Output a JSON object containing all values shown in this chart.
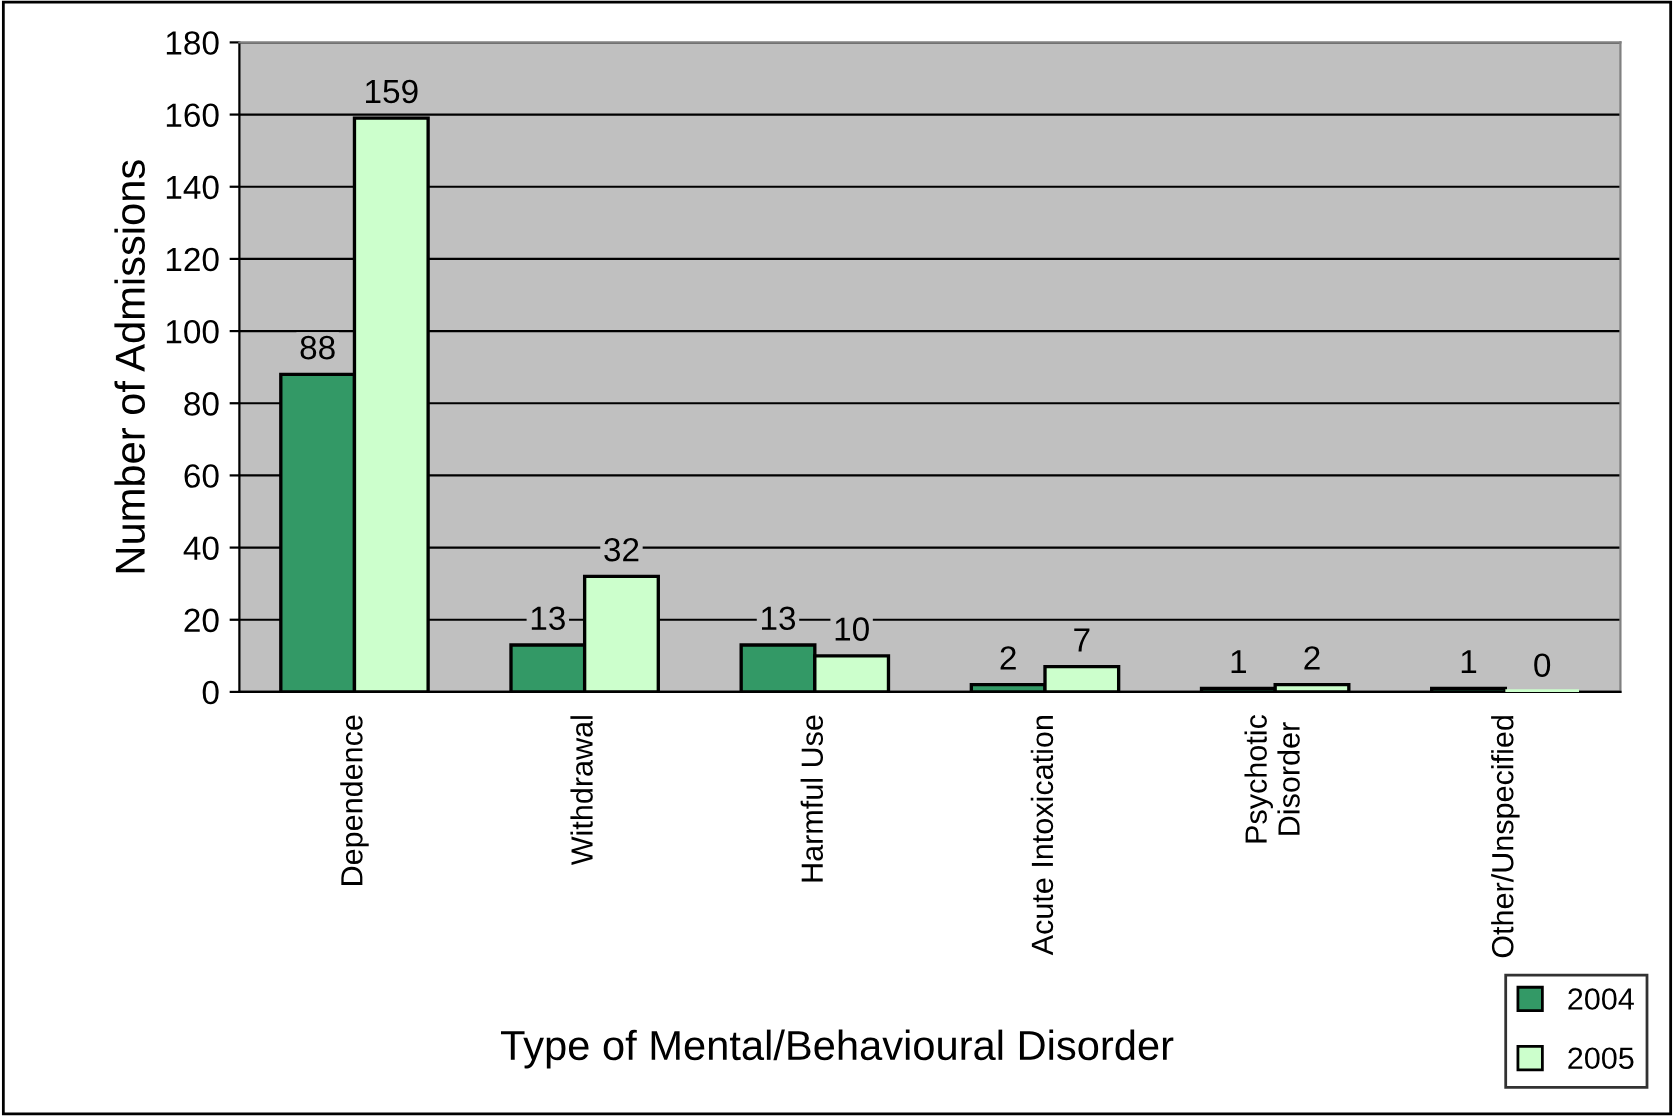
{
  "chart_data": {
    "type": "bar",
    "xlabel": "Type of Mental/Behavioural Disorder",
    "ylabel": "Number of Admissions",
    "categories": [
      "Dependence",
      "Withdrawal",
      "Harmful Use",
      "Acute Intoxication",
      "Psychotic\nDisorder",
      "Other/Unspecified"
    ],
    "series": [
      {
        "name": "2004",
        "color": "#339966",
        "values": [
          88,
          13,
          13,
          2,
          1,
          1
        ]
      },
      {
        "name": "2005",
        "color": "#ccffcc",
        "values": [
          159,
          32,
          10,
          7,
          2,
          0
        ]
      }
    ],
    "ylim": [
      0,
      180
    ],
    "yticks": [
      0,
      20,
      40,
      60,
      80,
      100,
      120,
      140,
      160,
      180
    ],
    "grid": "y",
    "legend": "bottom right",
    "data_labels": true
  }
}
